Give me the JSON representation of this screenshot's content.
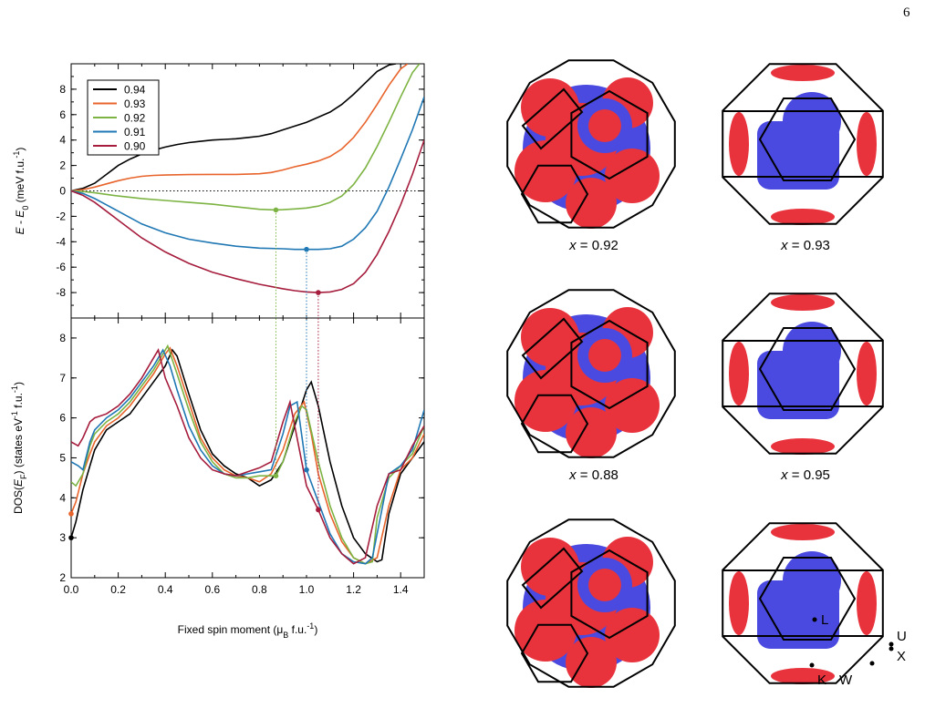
{
  "page_number": "6",
  "chart_data": [
    {
      "type": "line",
      "panel": "top",
      "xlabel": "",
      "ylabel_parts": [
        "E",
        " - ",
        "E",
        "0",
        " (meV f.u.",
        "-1",
        ")"
      ],
      "xlim": [
        0,
        1.5
      ],
      "ylim": [
        -10,
        10
      ],
      "y_ticks": [
        -8,
        -6,
        -4,
        -2,
        0,
        2,
        4,
        6,
        8
      ],
      "zero_line": true,
      "legend_position": "top-left",
      "series": [
        {
          "name": "0.94",
          "color": "#000000",
          "x": [
            0,
            0.05,
            0.1,
            0.15,
            0.2,
            0.25,
            0.3,
            0.35,
            0.4,
            0.45,
            0.5,
            0.55,
            0.6,
            0.65,
            0.7,
            0.75,
            0.8,
            0.85,
            0.9,
            0.95,
            1.0,
            1.05,
            1.1,
            1.15,
            1.2,
            1.25,
            1.3,
            1.35,
            1.38
          ],
          "y": [
            0,
            0.2,
            0.6,
            1.3,
            2.0,
            2.5,
            2.9,
            3.2,
            3.45,
            3.65,
            3.8,
            3.9,
            4.0,
            4.05,
            4.1,
            4.2,
            4.3,
            4.5,
            4.8,
            5.1,
            5.4,
            5.8,
            6.2,
            6.8,
            7.6,
            8.5,
            9.4,
            9.9,
            10
          ]
        },
        {
          "name": "0.93",
          "color": "#e8642c",
          "x": [
            0,
            0.05,
            0.1,
            0.15,
            0.2,
            0.25,
            0.3,
            0.35,
            0.4,
            0.5,
            0.6,
            0.7,
            0.8,
            0.85,
            0.9,
            0.95,
            1.0,
            1.05,
            1.1,
            1.15,
            1.2,
            1.25,
            1.3,
            1.35,
            1.4,
            1.43
          ],
          "y": [
            0,
            0.1,
            0.3,
            0.55,
            0.8,
            1.0,
            1.15,
            1.22,
            1.25,
            1.28,
            1.3,
            1.3,
            1.35,
            1.45,
            1.65,
            1.9,
            2.1,
            2.35,
            2.7,
            3.3,
            4.2,
            5.4,
            6.8,
            8.3,
            9.6,
            10
          ]
        },
        {
          "name": "0.92",
          "color": "#7cb342",
          "x": [
            0,
            0.05,
            0.1,
            0.2,
            0.3,
            0.4,
            0.5,
            0.6,
            0.7,
            0.8,
            0.87,
            0.9,
            0.95,
            1.0,
            1.05,
            1.1,
            1.15,
            1.2,
            1.25,
            1.3,
            1.35,
            1.4,
            1.45,
            1.48
          ],
          "y": [
            0,
            -0.05,
            -0.15,
            -0.4,
            -0.6,
            -0.75,
            -0.9,
            -1.05,
            -1.25,
            -1.45,
            -1.5,
            -1.48,
            -1.42,
            -1.35,
            -1.2,
            -0.9,
            -0.4,
            0.5,
            1.8,
            3.5,
            5.4,
            7.4,
            9.3,
            10
          ]
        },
        {
          "name": "0.91",
          "color": "#1f77b4",
          "x": [
            0,
            0.05,
            0.1,
            0.15,
            0.2,
            0.25,
            0.3,
            0.4,
            0.5,
            0.6,
            0.7,
            0.8,
            0.9,
            0.95,
            1.0,
            1.05,
            1.1,
            1.15,
            1.2,
            1.25,
            1.3,
            1.35,
            1.4,
            1.45,
            1.5
          ],
          "y": [
            0,
            -0.2,
            -0.6,
            -1.1,
            -1.6,
            -2.1,
            -2.6,
            -3.3,
            -3.8,
            -4.1,
            -4.35,
            -4.5,
            -4.55,
            -4.6,
            -4.6,
            -4.6,
            -4.55,
            -4.35,
            -3.8,
            -2.9,
            -1.6,
            0.3,
            2.5,
            4.8,
            7.4
          ]
        },
        {
          "name": "0.90",
          "color": "#a51c3c",
          "x": [
            0,
            0.05,
            0.1,
            0.15,
            0.2,
            0.25,
            0.3,
            0.4,
            0.5,
            0.6,
            0.7,
            0.8,
            0.9,
            0.95,
            1.0,
            1.05,
            1.1,
            1.15,
            1.2,
            1.25,
            1.3,
            1.35,
            1.4,
            1.45,
            1.5
          ],
          "y": [
            0,
            -0.35,
            -0.9,
            -1.6,
            -2.3,
            -3.0,
            -3.7,
            -4.8,
            -5.7,
            -6.4,
            -6.9,
            -7.35,
            -7.7,
            -7.85,
            -7.95,
            -8.0,
            -7.95,
            -7.75,
            -7.3,
            -6.4,
            -5.0,
            -3.2,
            -1.1,
            1.3,
            4.0
          ]
        }
      ],
      "markers": [
        {
          "x": 0.87,
          "y": -1.5,
          "color": "#7cb342"
        },
        {
          "x": 1.0,
          "y": -4.6,
          "color": "#1f77b4"
        },
        {
          "x": 1.05,
          "y": -8.0,
          "color": "#a51c3c"
        }
      ]
    },
    {
      "type": "line",
      "panel": "bottom",
      "xlabel_parts": [
        "Fixed spin moment (μ",
        "B",
        " f.u.",
        "-1",
        ")"
      ],
      "ylabel_parts": [
        "DOS(",
        "E",
        "F",
        ")  (states eV",
        "-1",
        " f.u.",
        "-1",
        ")"
      ],
      "xlim": [
        0,
        1.5
      ],
      "ylim": [
        2,
        8.5
      ],
      "y_ticks": [
        2,
        3,
        4,
        5,
        6,
        7,
        8
      ],
      "x_ticks": [
        0.0,
        0.2,
        0.4,
        0.6,
        0.8,
        1.0,
        1.2,
        1.4
      ],
      "x_tick_labels": [
        "0.0",
        "0.2",
        "0.4",
        "0.6",
        "0.8",
        "1.0",
        "1.2",
        "1.4"
      ],
      "series": [
        {
          "name": "0.94",
          "color": "#000000",
          "x": [
            0,
            0.02,
            0.05,
            0.08,
            0.1,
            0.15,
            0.2,
            0.25,
            0.3,
            0.35,
            0.4,
            0.43,
            0.45,
            0.5,
            0.55,
            0.6,
            0.65,
            0.7,
            0.75,
            0.8,
            0.85,
            0.9,
            0.95,
            1.0,
            1.02,
            1.05,
            1.1,
            1.15,
            1.2,
            1.25,
            1.3,
            1.32,
            1.35,
            1.4,
            1.45,
            1.5
          ],
          "y": [
            3.0,
            3.4,
            4.2,
            4.8,
            5.2,
            5.7,
            5.9,
            6.1,
            6.5,
            6.9,
            7.3,
            7.7,
            7.55,
            6.6,
            5.7,
            5.1,
            4.8,
            4.6,
            4.5,
            4.3,
            4.45,
            4.9,
            5.8,
            6.7,
            6.9,
            6.3,
            4.9,
            3.8,
            3.0,
            2.6,
            2.4,
            2.45,
            3.6,
            4.6,
            5.0,
            5.4
          ]
        },
        {
          "name": "0.93",
          "color": "#e8642c",
          "x": [
            0,
            0.02,
            0.05,
            0.08,
            0.1,
            0.15,
            0.2,
            0.25,
            0.3,
            0.35,
            0.4,
            0.42,
            0.45,
            0.5,
            0.55,
            0.6,
            0.65,
            0.7,
            0.75,
            0.8,
            0.85,
            0.9,
            0.95,
            0.99,
            1.02,
            1.05,
            1.1,
            1.15,
            1.2,
            1.25,
            1.3,
            1.35,
            1.4,
            1.45,
            1.5
          ],
          "y": [
            3.6,
            3.9,
            4.6,
            5.1,
            5.4,
            5.8,
            6.0,
            6.3,
            6.7,
            7.1,
            7.6,
            7.75,
            7.3,
            6.4,
            5.5,
            5.0,
            4.7,
            4.55,
            4.5,
            4.4,
            4.6,
            5.2,
            6.1,
            6.4,
            5.6,
            4.6,
            3.6,
            2.9,
            2.5,
            2.35,
            2.5,
            3.8,
            4.7,
            5.0,
            5.6
          ]
        },
        {
          "name": "0.92",
          "color": "#7cb342",
          "x": [
            0,
            0.02,
            0.05,
            0.08,
            0.1,
            0.15,
            0.2,
            0.25,
            0.3,
            0.35,
            0.38,
            0.41,
            0.45,
            0.5,
            0.55,
            0.6,
            0.65,
            0.7,
            0.75,
            0.8,
            0.87,
            0.9,
            0.95,
            0.98,
            1.0,
            1.05,
            1.1,
            1.15,
            1.2,
            1.25,
            1.28,
            1.3,
            1.35,
            1.4,
            1.45,
            1.5
          ],
          "y": [
            4.4,
            4.3,
            4.6,
            5.3,
            5.6,
            5.9,
            6.1,
            6.4,
            6.8,
            7.2,
            7.5,
            7.8,
            7.1,
            6.2,
            5.4,
            4.9,
            4.6,
            4.5,
            4.5,
            4.55,
            4.55,
            4.9,
            5.9,
            6.3,
            6.2,
            4.9,
            3.8,
            3.0,
            2.5,
            2.35,
            2.4,
            3.5,
            4.5,
            4.8,
            5.1,
            5.8
          ]
        },
        {
          "name": "0.91",
          "color": "#1f77b4",
          "x": [
            0,
            0.03,
            0.05,
            0.08,
            0.1,
            0.15,
            0.2,
            0.25,
            0.3,
            0.35,
            0.39,
            0.42,
            0.45,
            0.5,
            0.55,
            0.6,
            0.65,
            0.7,
            0.75,
            0.8,
            0.85,
            0.9,
            0.93,
            0.96,
            1.0,
            1.05,
            1.1,
            1.15,
            1.2,
            1.25,
            1.28,
            1.32,
            1.35,
            1.4,
            1.45,
            1.5
          ],
          "y": [
            4.9,
            4.8,
            4.7,
            5.4,
            5.7,
            6.0,
            6.2,
            6.5,
            6.9,
            7.3,
            7.7,
            7.3,
            6.7,
            5.8,
            5.2,
            4.8,
            4.6,
            4.55,
            4.6,
            4.65,
            4.7,
            5.6,
            6.3,
            6.4,
            4.7,
            3.9,
            3.1,
            2.6,
            2.4,
            2.35,
            2.5,
            3.7,
            4.6,
            4.8,
            5.2,
            6.2
          ]
        },
        {
          "name": "0.90",
          "color": "#a51c3c",
          "x": [
            0,
            0.03,
            0.05,
            0.08,
            0.1,
            0.15,
            0.2,
            0.25,
            0.3,
            0.35,
            0.37,
            0.4,
            0.45,
            0.5,
            0.55,
            0.6,
            0.65,
            0.7,
            0.75,
            0.8,
            0.85,
            0.9,
            0.93,
            1.0,
            1.05,
            1.1,
            1.15,
            1.2,
            1.25,
            1.3,
            1.35,
            1.4,
            1.45,
            1.5
          ],
          "y": [
            5.4,
            5.3,
            5.5,
            5.9,
            6.0,
            6.1,
            6.3,
            6.6,
            7.0,
            7.5,
            7.7,
            7.0,
            6.3,
            5.5,
            5.0,
            4.7,
            4.6,
            4.55,
            4.65,
            4.75,
            4.9,
            5.9,
            6.4,
            4.3,
            3.7,
            3.0,
            2.6,
            2.35,
            2.5,
            3.8,
            4.6,
            4.7,
            5.3,
            5.8
          ]
        }
      ],
      "markers": [
        {
          "x": 0.0,
          "y": 3.0,
          "color": "#000000"
        },
        {
          "x": 0.0,
          "y": 3.6,
          "color": "#e8642c"
        },
        {
          "x": 0.87,
          "y": 4.55,
          "color": "#7cb342"
        },
        {
          "x": 1.0,
          "y": 4.7,
          "color": "#1f77b4"
        },
        {
          "x": 1.05,
          "y": 3.7,
          "color": "#a51c3c"
        }
      ]
    }
  ],
  "fermi_surfaces": [
    {
      "label_var": "x",
      "label_rest": " = 0.92",
      "style": "bcc"
    },
    {
      "label_var": "x",
      "label_rest": " = 0.93",
      "style": "fcc"
    },
    {
      "label_var": "x",
      "label_rest": " = 0.88",
      "style": "bcc"
    },
    {
      "label_var": "x",
      "label_rest": " = 0.95",
      "style": "fcc"
    },
    {
      "label_var": "",
      "label_rest": "",
      "style": "bcc"
    },
    {
      "label_var": "",
      "label_rest": "",
      "style": "fcc"
    }
  ],
  "high_symmetry": [
    "L",
    "U",
    "X",
    "K",
    "W"
  ],
  "colors": {
    "surface_red": "#e8333d",
    "surface_blue": "#4a4ae0",
    "edge": "#000000"
  }
}
